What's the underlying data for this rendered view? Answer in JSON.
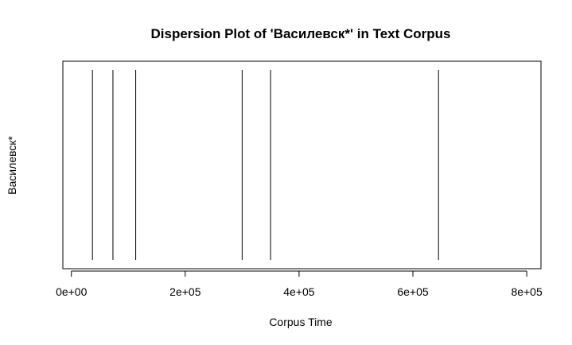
{
  "chart_data": {
    "type": "dispersion",
    "title": "Dispersion Plot of 'Василевск*' in Text Corpus",
    "xlabel": "Corpus Time",
    "ylabel": "Василевск*",
    "xlim": [
      -15000,
      825000
    ],
    "xticks": [
      0,
      200000,
      400000,
      600000,
      800000
    ],
    "xtick_labels": [
      "0e+00",
      "2e+05",
      "4e+05",
      "6e+05",
      "8e+05"
    ],
    "x": [
      37000,
      73000,
      113000,
      300000,
      350000,
      645000
    ],
    "grid": false,
    "color": "#000000"
  }
}
